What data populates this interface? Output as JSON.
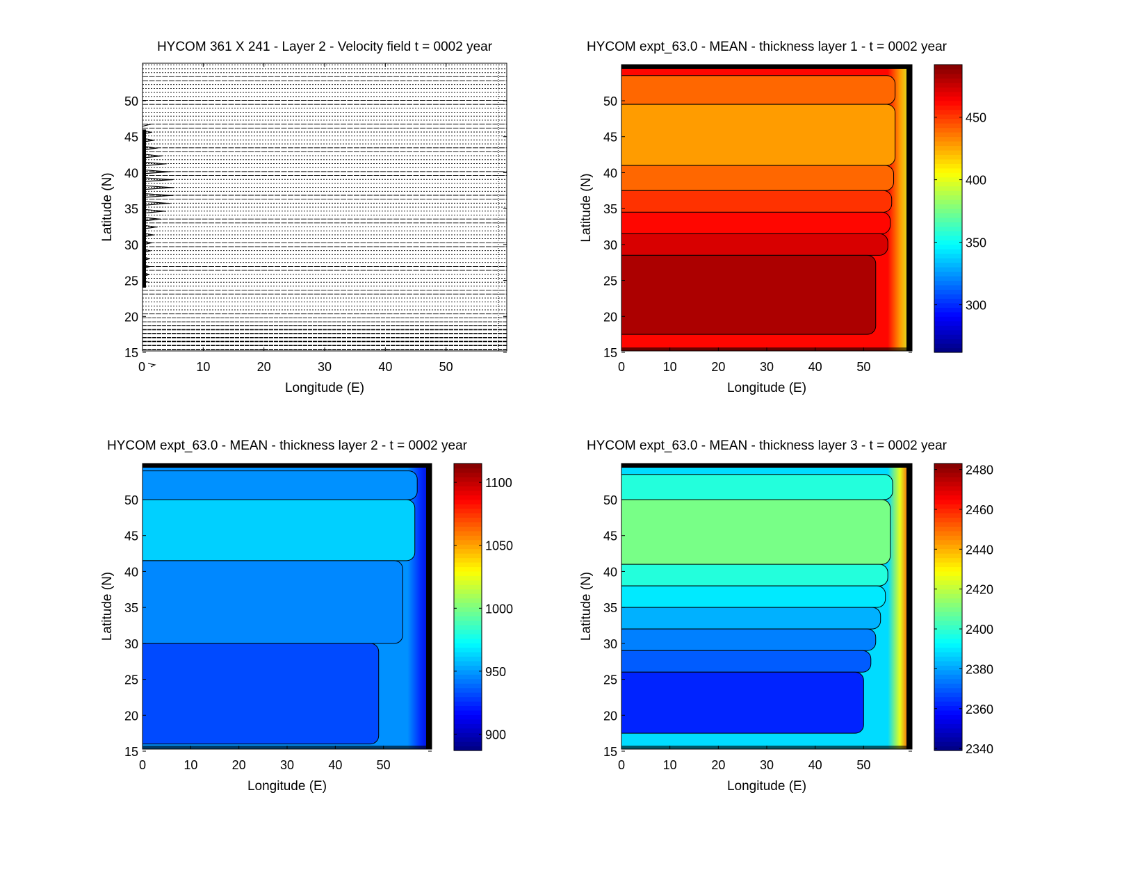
{
  "chart_data": [
    {
      "type": "quiver",
      "title": "HYCOM 361 X 241 - Layer 2 - Velocity field  t = 0002 year",
      "xlabel": "Longitude (E)",
      "ylabel": "Latitude (N)",
      "xlim": [
        0,
        60
      ],
      "ylim": [
        15,
        55
      ],
      "xticks": [
        "0",
        "10",
        "20",
        "30",
        "40",
        "50"
      ],
      "yticks": [
        "15",
        "20",
        "25",
        "30",
        "35",
        "40",
        "45",
        "50"
      ],
      "grid": {
        "nx": 361,
        "ny": 241
      },
      "reference_arrow": "0 →"
    },
    {
      "type": "heatmap",
      "title": "HYCOM expt_63.0 - MEAN - thickness layer 1 - t = 0002 year",
      "xlabel": "Longitude (E)",
      "ylabel": "Latitude (N)",
      "xlim": [
        0,
        60
      ],
      "ylim": [
        15,
        55
      ],
      "xticks": [
        "0",
        "10",
        "20",
        "30",
        "40",
        "50"
      ],
      "yticks": [
        "15",
        "20",
        "25",
        "30",
        "35",
        "40",
        "45",
        "50"
      ],
      "clim": [
        262,
        492
      ],
      "colorbar_ticks": [
        "300",
        "350",
        "400",
        "450"
      ],
      "background_value": 462,
      "boundary_value": 395,
      "bands": [
        {
          "lat": [
            49.5,
            53.5
          ],
          "lon_end": 56.5,
          "value": 440
        },
        {
          "lat": [
            41,
            49.5
          ],
          "lon_end": 56.5,
          "value": 428
        },
        {
          "lat": [
            37.5,
            41
          ],
          "lon_end": 56.2,
          "value": 440
        },
        {
          "lat": [
            34.5,
            37.5
          ],
          "lon_end": 55.8,
          "value": 452
        },
        {
          "lat": [
            31.5,
            34.5
          ],
          "lon_end": 55.5,
          "value": 462
        },
        {
          "lat": [
            28.5,
            31.5
          ],
          "lon_end": 55,
          "value": 472
        },
        {
          "lat": [
            17.5,
            28.5
          ],
          "lon_end": 52.5,
          "value": 482
        }
      ]
    },
    {
      "type": "heatmap",
      "title": "HYCOM expt_63.0 - MEAN - thickness layer 2 - t = 0002 year",
      "xlabel": "Longitude (E)",
      "ylabel": "Latitude (N)",
      "xlim": [
        0,
        60
      ],
      "ylim": [
        15,
        55
      ],
      "xticks": [
        "0",
        "10",
        "20",
        "30",
        "40",
        "50"
      ],
      "yticks": [
        "15",
        "20",
        "25",
        "30",
        "35",
        "40",
        "45",
        "50"
      ],
      "clim": [
        887,
        1115
      ],
      "colorbar_ticks": [
        "900",
        "950",
        "1000",
        "1050",
        "1100"
      ],
      "background_value": 948,
      "boundary_value": 905,
      "bands": [
        {
          "lat": [
            50,
            54
          ],
          "lon_end": 57,
          "value": 948
        },
        {
          "lat": [
            41.5,
            50
          ],
          "lon_end": 56.5,
          "value": 962
        },
        {
          "lat": [
            30,
            41.5
          ],
          "lon_end": 54,
          "value": 946
        },
        {
          "lat": [
            16,
            30
          ],
          "lon_end": 49,
          "value": 932
        }
      ]
    },
    {
      "type": "heatmap",
      "title": "HYCOM expt_63.0 - MEAN - thickness layer 3 - t = 0002 year",
      "xlabel": "Longitude (E)",
      "ylabel": "Latitude (N)",
      "xlim": [
        0,
        60
      ],
      "ylim": [
        15,
        55
      ],
      "xticks": [
        "0",
        "10",
        "20",
        "30",
        "40",
        "50"
      ],
      "yticks": [
        "15",
        "20",
        "25",
        "30",
        "35",
        "40",
        "45",
        "50"
      ],
      "clim": [
        2339,
        2483
      ],
      "colorbar_ticks": [
        "2340",
        "2360",
        "2380",
        "2400",
        "2420",
        "2440",
        "2460",
        "2480"
      ],
      "background_value": 2388,
      "boundary_value": 2462,
      "bands": [
        {
          "lat": [
            50,
            53.5
          ],
          "lon_end": 56,
          "value": 2398
        },
        {
          "lat": [
            41,
            50
          ],
          "lon_end": 55.5,
          "value": 2410
        },
        {
          "lat": [
            38,
            41
          ],
          "lon_end": 55,
          "value": 2398
        },
        {
          "lat": [
            35,
            38
          ],
          "lon_end": 54.5,
          "value": 2390
        },
        {
          "lat": [
            32,
            35
          ],
          "lon_end": 53.5,
          "value": 2382
        },
        {
          "lat": [
            29,
            32
          ],
          "lon_end": 52.5,
          "value": 2375
        },
        {
          "lat": [
            26,
            29
          ],
          "lon_end": 51.5,
          "value": 2370
        },
        {
          "lat": [
            17.5,
            26
          ],
          "lon_end": 50,
          "value": 2362
        }
      ]
    }
  ]
}
